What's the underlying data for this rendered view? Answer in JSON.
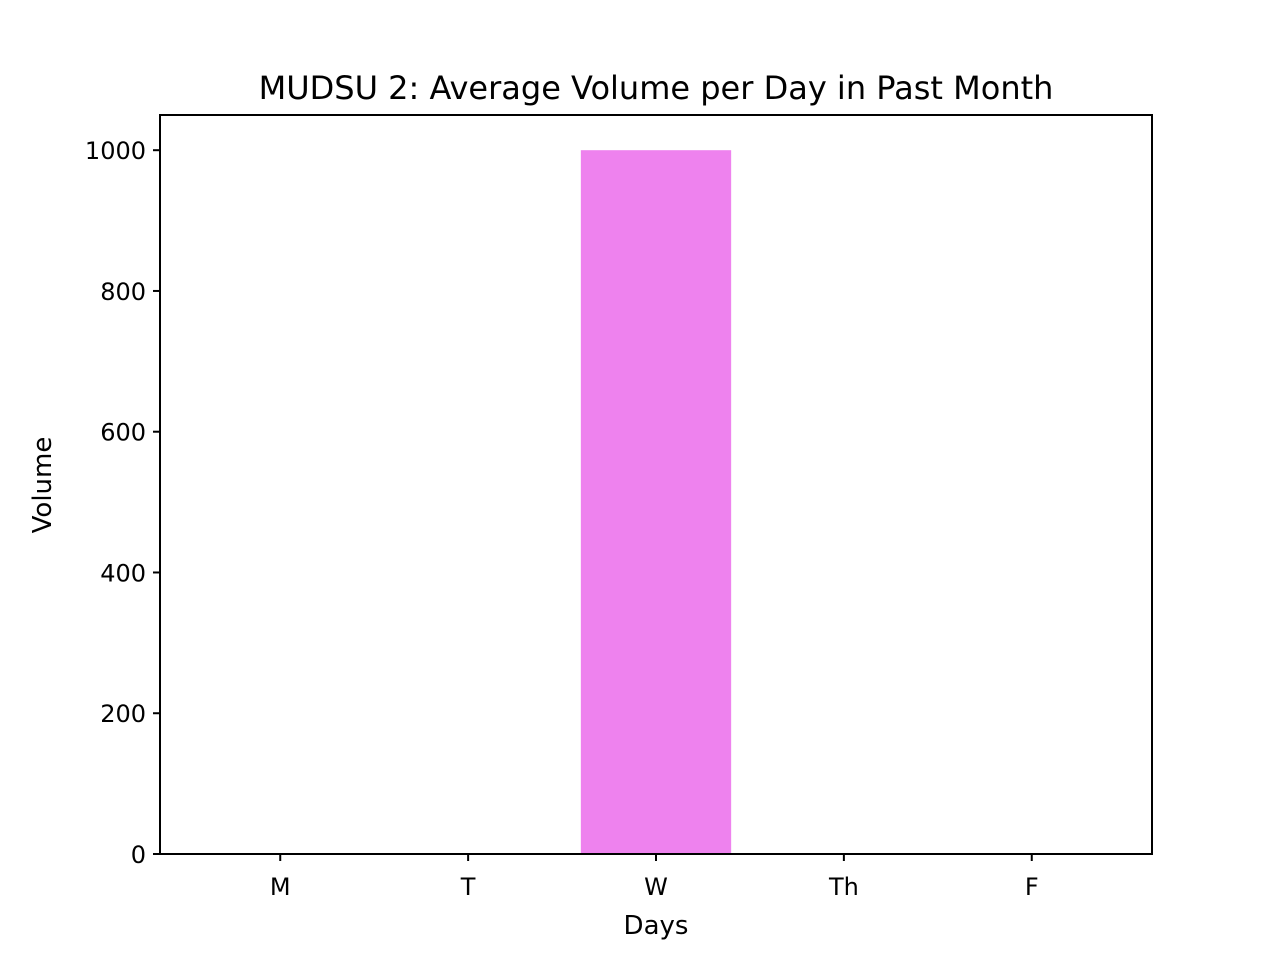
{
  "chart_data": {
    "type": "bar",
    "title": "MUDSU 2: Average Volume per Day in Past Month",
    "xlabel": "Days",
    "ylabel": "Volume",
    "categories": [
      "M",
      "T",
      "W",
      "Th",
      "F"
    ],
    "values": [
      0,
      0,
      1000,
      0,
      0
    ],
    "ylim": [
      0,
      1050
    ],
    "yticks": [
      0,
      200,
      400,
      600,
      800,
      1000
    ],
    "bar_color": "#ee82ee",
    "grid": false,
    "legend": "none"
  }
}
